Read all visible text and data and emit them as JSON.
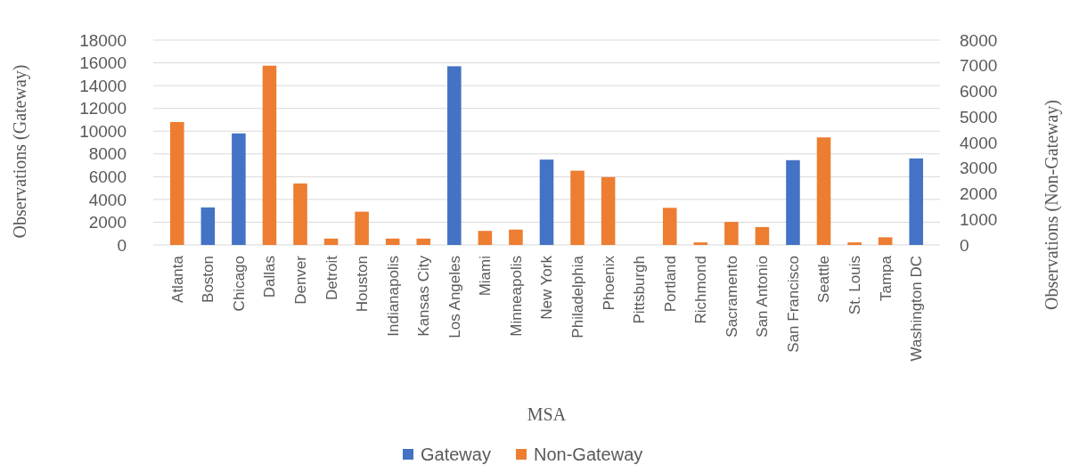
{
  "chart_data": {
    "type": "bar",
    "xlabel": "MSA",
    "ylabel": "Observations (Gateway)",
    "y2label": "Observations (Non-Gateway)",
    "categories": [
      "Atlanta",
      "Boston",
      "Chicago",
      "Dallas",
      "Denver",
      "Detroit",
      "Houston",
      "Indianapolis",
      "Kansas City",
      "Los Angeles",
      "Miami",
      "Minneapolis",
      "New York",
      "Philadelphia",
      "Phoenix",
      "Pittsburgh",
      "Portland",
      "Richmond",
      "Sacramento",
      "San Antonio",
      "San Francisco",
      "Seattle",
      "St. Louis",
      "Tampa",
      "Washington DC"
    ],
    "series": [
      {
        "name": "Gateway",
        "color": "#4472c4",
        "values": [
          null,
          3300,
          9800,
          null,
          null,
          null,
          null,
          null,
          null,
          15700,
          null,
          null,
          7500,
          null,
          null,
          null,
          null,
          null,
          null,
          null,
          7450,
          null,
          null,
          null,
          7600
        ]
      },
      {
        "name": "Non-Gateway",
        "color": "#ed7d31",
        "axis": "y2",
        "values": [
          4800,
          null,
          null,
          7000,
          2400,
          250,
          1300,
          250,
          250,
          null,
          550,
          600,
          null,
          2900,
          2650,
          0,
          1450,
          100,
          900,
          700,
          null,
          4200,
          100,
          300,
          null
        ]
      }
    ],
    "ylim": [
      0,
      18000
    ],
    "yticks": [
      0,
      2000,
      4000,
      6000,
      8000,
      10000,
      12000,
      14000,
      16000,
      18000
    ],
    "y2lim": [
      0,
      8000
    ],
    "y2ticks": [
      0,
      1000,
      2000,
      3000,
      4000,
      5000,
      6000,
      7000,
      8000
    ],
    "grid": "y",
    "legend": "bottom"
  }
}
